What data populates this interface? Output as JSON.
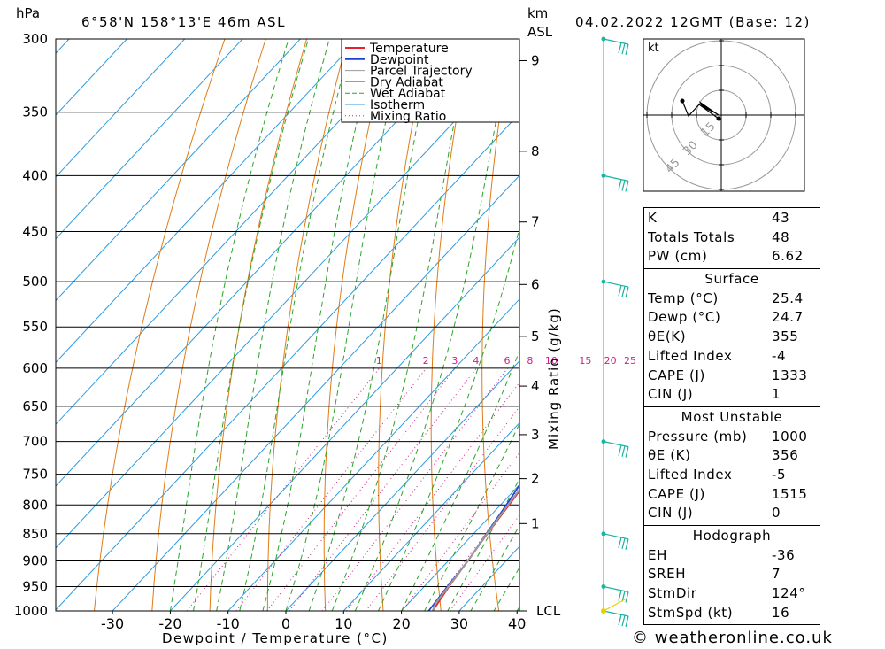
{
  "header": {
    "location": "6°58'N  158°13'E  46m  ASL",
    "datetime": "04.02.2022  12GMT  (Base: 12)",
    "hpa_unit": "hPa",
    "km_unit": "km",
    "asl_unit": "ASL"
  },
  "copyright": "© weatheronline.co.uk",
  "chart_data": {
    "type": "line",
    "title": "6°58'N 158°13'E 46m ASL",
    "xlabel": "Dewpoint / Temperature (°C)",
    "ylabel": "hPa",
    "ylabel_right": "Mixing Ratio (g/kg)",
    "xlim": [
      -40,
      40
    ],
    "ylim": [
      1000,
      300
    ],
    "x_ticks": [
      -30,
      -20,
      -10,
      0,
      10,
      20,
      30,
      40
    ],
    "pressure_levels": [
      300,
      350,
      400,
      450,
      500,
      550,
      600,
      650,
      700,
      750,
      800,
      850,
      900,
      950,
      1000
    ],
    "height_km_ticks": [
      "9",
      "8",
      "7",
      "6",
      "5",
      "4",
      "3",
      "2",
      "1",
      "LCL"
    ],
    "mixing_ratio_labels": [
      "1",
      "2",
      "3",
      "4",
      "6",
      "8",
      "10",
      "15",
      "20",
      "25"
    ],
    "legend": [
      "Temperature",
      "Dewpoint",
      "Parcel Trajectory",
      "Dry Adiabat",
      "Wet Adiabat",
      "Isotherm",
      "Mixing Ratio"
    ],
    "legend_position": "top-right",
    "colors": {
      "temperature": "#e8222a",
      "dewpoint": "#1f3fd8",
      "parcel": "#9a9a9a",
      "dry_adiabat": "#e07b16",
      "wet_adiabat": "#2aa52a",
      "isotherm": "#2d9be0",
      "mixing_ratio": "#d0208a",
      "wind": "#18b5a0"
    },
    "series": [
      {
        "name": "Temperature",
        "points": [
          [
            25.4,
            1000
          ],
          [
            24.3,
            950
          ],
          [
            23.4,
            900
          ],
          [
            22.4,
            850
          ],
          [
            21.5,
            800
          ],
          [
            20.5,
            750
          ],
          [
            19.6,
            700
          ],
          [
            18.6,
            650
          ],
          [
            20.0,
            640
          ],
          [
            17.5,
            625
          ],
          [
            17.0,
            600
          ],
          [
            17.5,
            590
          ],
          [
            16.5,
            570
          ],
          [
            15.5,
            550
          ],
          [
            14.5,
            520
          ],
          [
            13.5,
            500
          ],
          [
            12.5,
            470
          ],
          [
            11.5,
            450
          ],
          [
            12.0,
            430
          ],
          [
            10.5,
            410
          ],
          [
            9.5,
            400
          ],
          [
            8.5,
            375
          ],
          [
            8.0,
            360
          ]
        ]
      },
      {
        "name": "Dewpoint",
        "points": [
          [
            24.7,
            1000
          ],
          [
            24.0,
            950
          ],
          [
            23.4,
            900
          ],
          [
            22.2,
            850
          ],
          [
            21.0,
            800
          ],
          [
            19.6,
            750
          ],
          [
            18.5,
            700
          ],
          [
            17.5,
            670
          ],
          [
            17.0,
            655
          ],
          [
            14.0,
            651
          ],
          [
            17.5,
            645
          ],
          [
            16.0,
            625
          ],
          [
            14.0,
            615
          ],
          [
            16.5,
            600
          ],
          [
            12.0,
            598
          ],
          [
            10.0,
            550
          ],
          [
            15.0,
            533
          ],
          [
            12.0,
            505
          ],
          [
            11.0,
            495
          ],
          [
            13.5,
            475
          ],
          [
            12.5,
            465
          ],
          [
            11.5,
            450
          ],
          [
            13.0,
            435
          ],
          [
            10.5,
            420
          ],
          [
            10.0,
            410
          ],
          [
            9.5,
            400
          ],
          [
            7.5,
            392
          ],
          [
            8.5,
            380
          ],
          [
            7.0,
            375
          ],
          [
            7.5,
            365
          ],
          [
            5.0,
            365
          ],
          [
            8.0,
            353
          ],
          [
            4.5,
            340
          ],
          [
            4.5,
            330
          ],
          [
            -10.0,
            315
          ],
          [
            -9.0,
            300
          ]
        ]
      },
      {
        "name": "Parcel Trajectory",
        "points": [
          [
            25.4,
            1000
          ],
          [
            24.7,
            985
          ],
          [
            23.4,
            900
          ],
          [
            22.3,
            850
          ],
          [
            21.3,
            800
          ],
          [
            20.3,
            750
          ],
          [
            19.3,
            700
          ],
          [
            18.3,
            650
          ],
          [
            17.2,
            600
          ],
          [
            16.0,
            550
          ],
          [
            14.6,
            500
          ],
          [
            13.0,
            450
          ],
          [
            11.0,
            400
          ],
          [
            9.0,
            360
          ]
        ]
      }
    ],
    "wind_barbs_hpa": [
      1000,
      950,
      850,
      700,
      500,
      400,
      300
    ],
    "hodograph": {
      "unit": "kt",
      "ring_labels": [
        "15",
        "30",
        "45"
      ]
    }
  },
  "indices": {
    "general": [
      {
        "label": "K",
        "value": "43"
      },
      {
        "label": "Totals Totals",
        "value": "48"
      },
      {
        "label": "PW (cm)",
        "value": "6.62"
      }
    ],
    "surface": {
      "title": "Surface",
      "rows": [
        {
          "label": "Temp (°C)",
          "value": "25.4"
        },
        {
          "label": "Dewp (°C)",
          "value": "24.7"
        },
        {
          "label": "θE(K)",
          "value": "355"
        },
        {
          "label": "Lifted Index",
          "value": "-4"
        },
        {
          "label": "CAPE (J)",
          "value": "1333"
        },
        {
          "label": "CIN (J)",
          "value": "1"
        }
      ]
    },
    "most_unstable": {
      "title": "Most Unstable",
      "rows": [
        {
          "label": "Pressure (mb)",
          "value": "1000"
        },
        {
          "label": "θE (K)",
          "value": "356"
        },
        {
          "label": "Lifted Index",
          "value": "-5"
        },
        {
          "label": "CAPE (J)",
          "value": "1515"
        },
        {
          "label": "CIN (J)",
          "value": "0"
        }
      ]
    },
    "hodograph": {
      "title": "Hodograph",
      "rows": [
        {
          "label": "EH",
          "value": "-36"
        },
        {
          "label": "SREH",
          "value": "7"
        },
        {
          "label": "StmDir",
          "value": "124°"
        },
        {
          "label": "StmSpd (kt)",
          "value": "16"
        }
      ]
    }
  }
}
